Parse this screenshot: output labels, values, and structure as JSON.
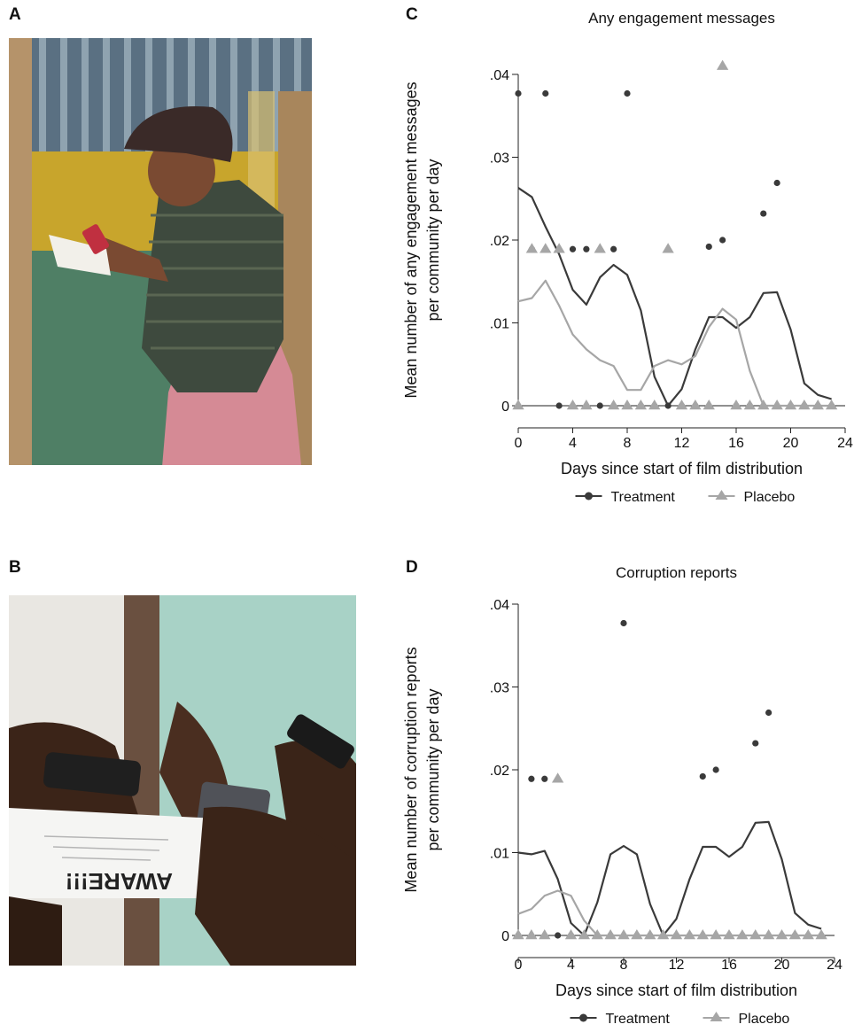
{
  "panels": {
    "a": "A",
    "b": "B",
    "c": "C",
    "d": "D"
  },
  "photos": {
    "a": {
      "sheet_text": ""
    },
    "b": {
      "sheet_text": "AWARE!!!"
    }
  },
  "colors": {
    "treatment": "#3a3a3a",
    "placebo": "#a6a6a6"
  },
  "chart_data": [
    {
      "panel": "C",
      "type": "line",
      "title": "Any engagement messages",
      "xlabel": "Days since start of film distribution",
      "ylabel_lines": [
        "Mean number of any engagement messages",
        "per community per day"
      ],
      "xlim": [
        0,
        24
      ],
      "ylim": [
        0,
        0.04
      ],
      "xticks": [
        0,
        4,
        8,
        12,
        16,
        20,
        24
      ],
      "yticks": [
        0,
        0.01,
        0.02,
        0.03,
        0.04
      ],
      "ytick_labels": [
        "0",
        ".01",
        ".02",
        ".03",
        ".04"
      ],
      "legend": {
        "position": "bottom",
        "entries": [
          {
            "label": "Treatment",
            "marker": "circle"
          },
          {
            "label": "Placebo",
            "marker": "triangle"
          }
        ]
      },
      "series": [
        {
          "name": "Treatment",
          "kind": "smooth",
          "x": [
            0,
            1,
            2,
            3,
            4,
            5,
            6,
            7,
            8,
            9,
            10,
            11,
            12,
            13,
            14,
            15,
            16,
            17,
            18,
            19,
            20,
            21,
            22,
            23
          ],
          "y": [
            0.0263,
            0.0252,
            0.0216,
            0.0183,
            0.014,
            0.0122,
            0.0155,
            0.017,
            0.0158,
            0.0115,
            0.0035,
            0.0,
            0.002,
            0.0068,
            0.0107,
            0.0107,
            0.0094,
            0.0107,
            0.0136,
            0.0137,
            0.0092,
            0.0027,
            0.0013,
            0.0008
          ]
        },
        {
          "name": "Placebo",
          "kind": "smooth",
          "x": [
            0,
            1,
            2,
            3,
            4,
            5,
            6,
            7,
            8,
            9,
            10,
            11,
            12,
            13,
            14,
            15,
            16,
            17,
            18,
            19,
            20,
            21,
            22,
            23
          ],
          "y": [
            0.0126,
            0.013,
            0.0151,
            0.0121,
            0.0086,
            0.0068,
            0.0055,
            0.0048,
            0.0019,
            0.0019,
            0.0048,
            0.0055,
            0.005,
            0.006,
            0.0095,
            0.0117,
            0.0104,
            0.0042,
            0.0,
            0.0,
            0.0,
            0.0,
            0.0,
            0.0
          ]
        },
        {
          "name": "Treatment",
          "kind": "points",
          "x": [
            0,
            1,
            2,
            3,
            4,
            5,
            6,
            7,
            8,
            9,
            10,
            11,
            12,
            13,
            14,
            15,
            16,
            17,
            18,
            19,
            20,
            21,
            22,
            23
          ],
          "y": [
            0.0377,
            0.0189,
            0.0377,
            0.0,
            0.0189,
            0.0189,
            0.0,
            0.0189,
            0.0377,
            0.0,
            0.0,
            0.0,
            0.0,
            0.0,
            0.0192,
            0.02,
            0.0,
            0.0,
            0.0232,
            0.0269,
            0.0,
            0.0,
            0.0,
            0.0
          ]
        },
        {
          "name": "Placebo",
          "kind": "points",
          "x": [
            0,
            1,
            2,
            3,
            4,
            5,
            6,
            7,
            8,
            9,
            10,
            11,
            12,
            13,
            14,
            15,
            16,
            17,
            18,
            19,
            20,
            21,
            22,
            23
          ],
          "y": [
            0.0,
            0.0189,
            0.0189,
            0.0189,
            0.0,
            0.0,
            0.0189,
            0.0,
            0.0,
            0.0,
            0.0,
            0.0189,
            0.0,
            0.0,
            0.0,
            0.041,
            0.0,
            0.0,
            0.0,
            0.0,
            0.0,
            0.0,
            0.0,
            0.0
          ]
        }
      ]
    },
    {
      "panel": "D",
      "type": "line",
      "title": "Corruption reports",
      "xlabel": "Days since start of film distribution",
      "ylabel_lines": [
        "Mean number of corruption reports",
        "per community per day"
      ],
      "xlim": [
        0,
        24
      ],
      "ylim": [
        0,
        0.04
      ],
      "xticks": [
        0,
        4,
        8,
        12,
        16,
        20,
        24
      ],
      "yticks": [
        0,
        0.01,
        0.02,
        0.03,
        0.04
      ],
      "ytick_labels": [
        "0",
        ".01",
        ".02",
        ".03",
        ".04"
      ],
      "legend": {
        "position": "bottom",
        "entries": [
          {
            "label": "Treatment",
            "marker": "circle"
          },
          {
            "label": "Placebo",
            "marker": "triangle"
          }
        ]
      },
      "series": [
        {
          "name": "Treatment",
          "kind": "smooth",
          "x": [
            0,
            1,
            2,
            3,
            4,
            5,
            6,
            7,
            8,
            9,
            10,
            11,
            12,
            13,
            14,
            15,
            16,
            17,
            18,
            19,
            20,
            21,
            22,
            23
          ],
          "y": [
            0.01,
            0.0098,
            0.0102,
            0.0068,
            0.0015,
            0.0,
            0.004,
            0.0098,
            0.0108,
            0.0098,
            0.0038,
            0.0,
            0.002,
            0.0068,
            0.0107,
            0.0107,
            0.0095,
            0.0107,
            0.0136,
            0.0137,
            0.0092,
            0.0027,
            0.0013,
            0.0008
          ]
        },
        {
          "name": "Placebo",
          "kind": "smooth",
          "x": [
            0,
            1,
            2,
            3,
            4,
            5,
            6,
            7,
            8,
            9,
            10,
            11,
            12,
            13,
            14,
            15,
            16,
            17,
            18,
            19,
            20,
            21,
            22,
            23
          ],
          "y": [
            0.0026,
            0.0032,
            0.0048,
            0.0054,
            0.0048,
            0.0018,
            0.0,
            0.0,
            0.0,
            0.0,
            0.0,
            0.0,
            0.0,
            0.0,
            0.0,
            0.0,
            0.0,
            0.0,
            0.0,
            0.0,
            0.0,
            0.0,
            0.0,
            0.0
          ]
        },
        {
          "name": "Treatment",
          "kind": "points",
          "x": [
            0,
            1,
            2,
            3,
            4,
            5,
            6,
            7,
            8,
            9,
            10,
            11,
            12,
            13,
            14,
            15,
            16,
            17,
            18,
            19,
            20,
            21,
            22,
            23
          ],
          "y": [
            0.0,
            0.0189,
            0.0189,
            0.0,
            0.0,
            0.0,
            0.0,
            0.0,
            0.0377,
            0.0,
            0.0,
            0.0,
            0.0,
            0.0,
            0.0192,
            0.02,
            0.0,
            0.0,
            0.0232,
            0.0269,
            0.0,
            0.0,
            0.0,
            0.0
          ]
        },
        {
          "name": "Placebo",
          "kind": "points",
          "x": [
            0,
            1,
            2,
            3,
            4,
            5,
            6,
            7,
            8,
            9,
            10,
            11,
            12,
            13,
            14,
            15,
            16,
            17,
            18,
            19,
            20,
            21,
            22,
            23
          ],
          "y": [
            0.0,
            0.0,
            0.0,
            0.0189,
            0.0,
            0.0,
            0.0,
            0.0,
            0.0,
            0.0,
            0.0,
            0.0,
            0.0,
            0.0,
            0.0,
            0.0,
            0.0,
            0.0,
            0.0,
            0.0,
            0.0,
            0.0,
            0.0,
            0.0
          ]
        }
      ]
    }
  ]
}
